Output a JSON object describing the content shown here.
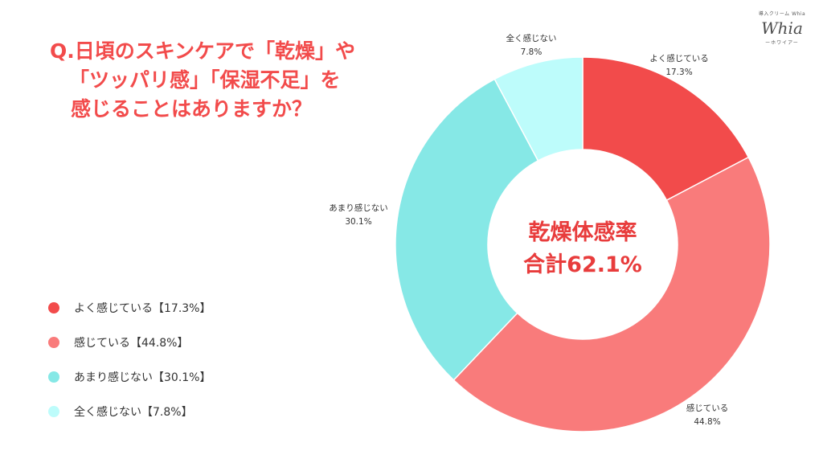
{
  "title": {
    "line1": "Q.日頃のスキンケアで「乾燥」や",
    "line2": "「ツッパリ感」「保湿不足」を",
    "line3": "感じることはありますか？"
  },
  "brand": {
    "tagline": "導入クリーム Whia",
    "logo_text": "Whia",
    "reading": "ーホワイアー"
  },
  "center": {
    "line1": "乾燥体感率",
    "line2": "合計62.1%"
  },
  "legend": [
    {
      "text": "よく感じている【17.3%】",
      "color": "#f24b4b"
    },
    {
      "text": "感じている【44.8%】",
      "color": "#f97b7b"
    },
    {
      "text": "あまり感じない【30.1%】",
      "color": "#86e8e6"
    },
    {
      "text": "全く感じない【7.8%】",
      "color": "#bdfcfb"
    }
  ],
  "chart_data": {
    "type": "pie",
    "donut": true,
    "start": "12 o'clock, clockwise",
    "categories": [
      "よく感じている",
      "感じている",
      "あまり感じない",
      "全く感じない"
    ],
    "values": [
      17.3,
      44.8,
      30.1,
      7.8
    ],
    "value_labels": [
      "17.3%",
      "44.8%",
      "30.1%",
      "7.8%"
    ],
    "colors": [
      "#f24b4b",
      "#f97b7b",
      "#86e8e6",
      "#bdfcfb"
    ],
    "center_text": [
      "乾燥体感率",
      "合計62.1%"
    ]
  }
}
